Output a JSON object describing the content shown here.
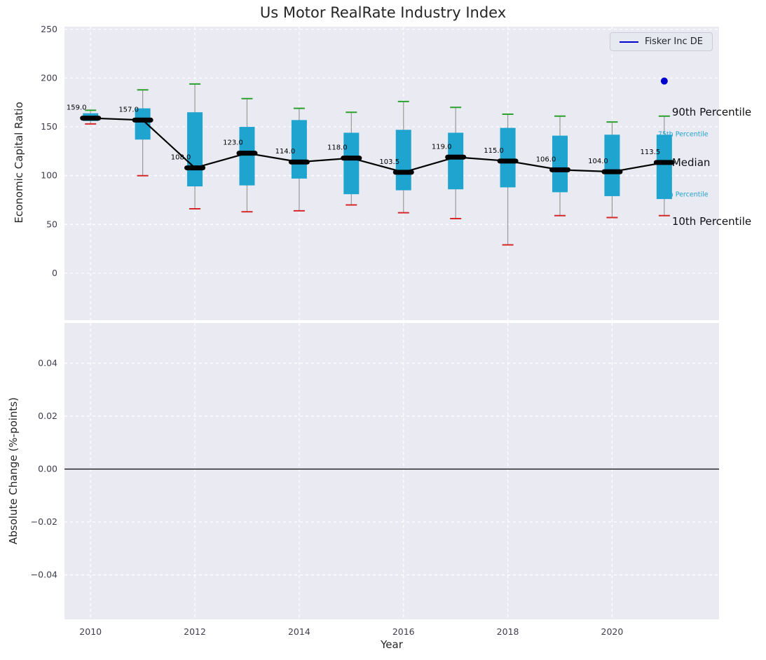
{
  "title": "Us Motor RealRate Industry Index",
  "legend": {
    "label": "Fisker Inc DE",
    "color": "#0000cd"
  },
  "annotations": {
    "p90": "90th Percentile",
    "p75": "75th Percentile",
    "median": "Median",
    "p25": "25th Percentile",
    "p10": "10th Percentile"
  },
  "colors": {
    "plot_bg": "#eaeaf2",
    "grid": "#ffffff",
    "box": "#1fa3cf",
    "cap_top": "#2ca02c",
    "cap_bottom": "#d62728",
    "whisker": "#999999",
    "median": "#000000",
    "company": "#0000cd",
    "tick": "#3d3d4d",
    "annotation_small": "#1fa3cf"
  },
  "chart_data": [
    {
      "type": "boxplot",
      "title": "Us Motor RealRate Industry Index",
      "ylabel": "Economic Capital Ratio",
      "xlabel": "",
      "categories": [
        2010,
        2011,
        2012,
        2013,
        2014,
        2015,
        2016,
        2017,
        2018,
        2019,
        2020,
        2021
      ],
      "series": {
        "median": [
          159.0,
          157.0,
          108.0,
          123.0,
          114.0,
          118.0,
          103.5,
          119.0,
          115.0,
          106.0,
          104.0,
          113.5
        ],
        "q1": [
          156,
          137,
          89,
          90,
          97,
          81,
          85,
          86,
          88,
          83,
          79,
          76
        ],
        "q3": [
          164,
          169,
          165,
          150,
          157,
          144,
          147,
          144,
          149,
          141,
          142,
          142
        ],
        "p10": [
          153,
          100,
          66,
          63,
          64,
          70,
          62,
          56,
          29,
          59,
          57,
          59
        ],
        "p90": [
          167,
          188,
          194,
          179,
          169,
          165,
          176,
          170,
          163,
          161,
          155,
          161
        ]
      },
      "company_point": {
        "name": "Fisker Inc DE",
        "x": 2021,
        "y": 197
      },
      "ylim": [
        -48.2,
        252.8
      ],
      "yticks": [
        250,
        200,
        150,
        100,
        50,
        0
      ],
      "xlim": [
        2009.5,
        2022.05
      ],
      "xticks": [
        2010,
        2012,
        2014,
        2016,
        2018,
        2020
      ],
      "grid": "dashed-white",
      "legend_position": "upper right"
    },
    {
      "type": "line",
      "ylabel": "Absolute Change (%-points)",
      "xlabel": "Year",
      "values": [],
      "zero_line": 0.0,
      "ylim": [
        -0.0568,
        0.0552
      ],
      "yticks": [
        0.04,
        0.02,
        0.0,
        -0.02,
        -0.04
      ],
      "xlim": [
        2009.5,
        2022.05
      ],
      "xticks": [
        2010,
        2012,
        2014,
        2016,
        2018,
        2020
      ],
      "grid": "dashed-white"
    }
  ]
}
